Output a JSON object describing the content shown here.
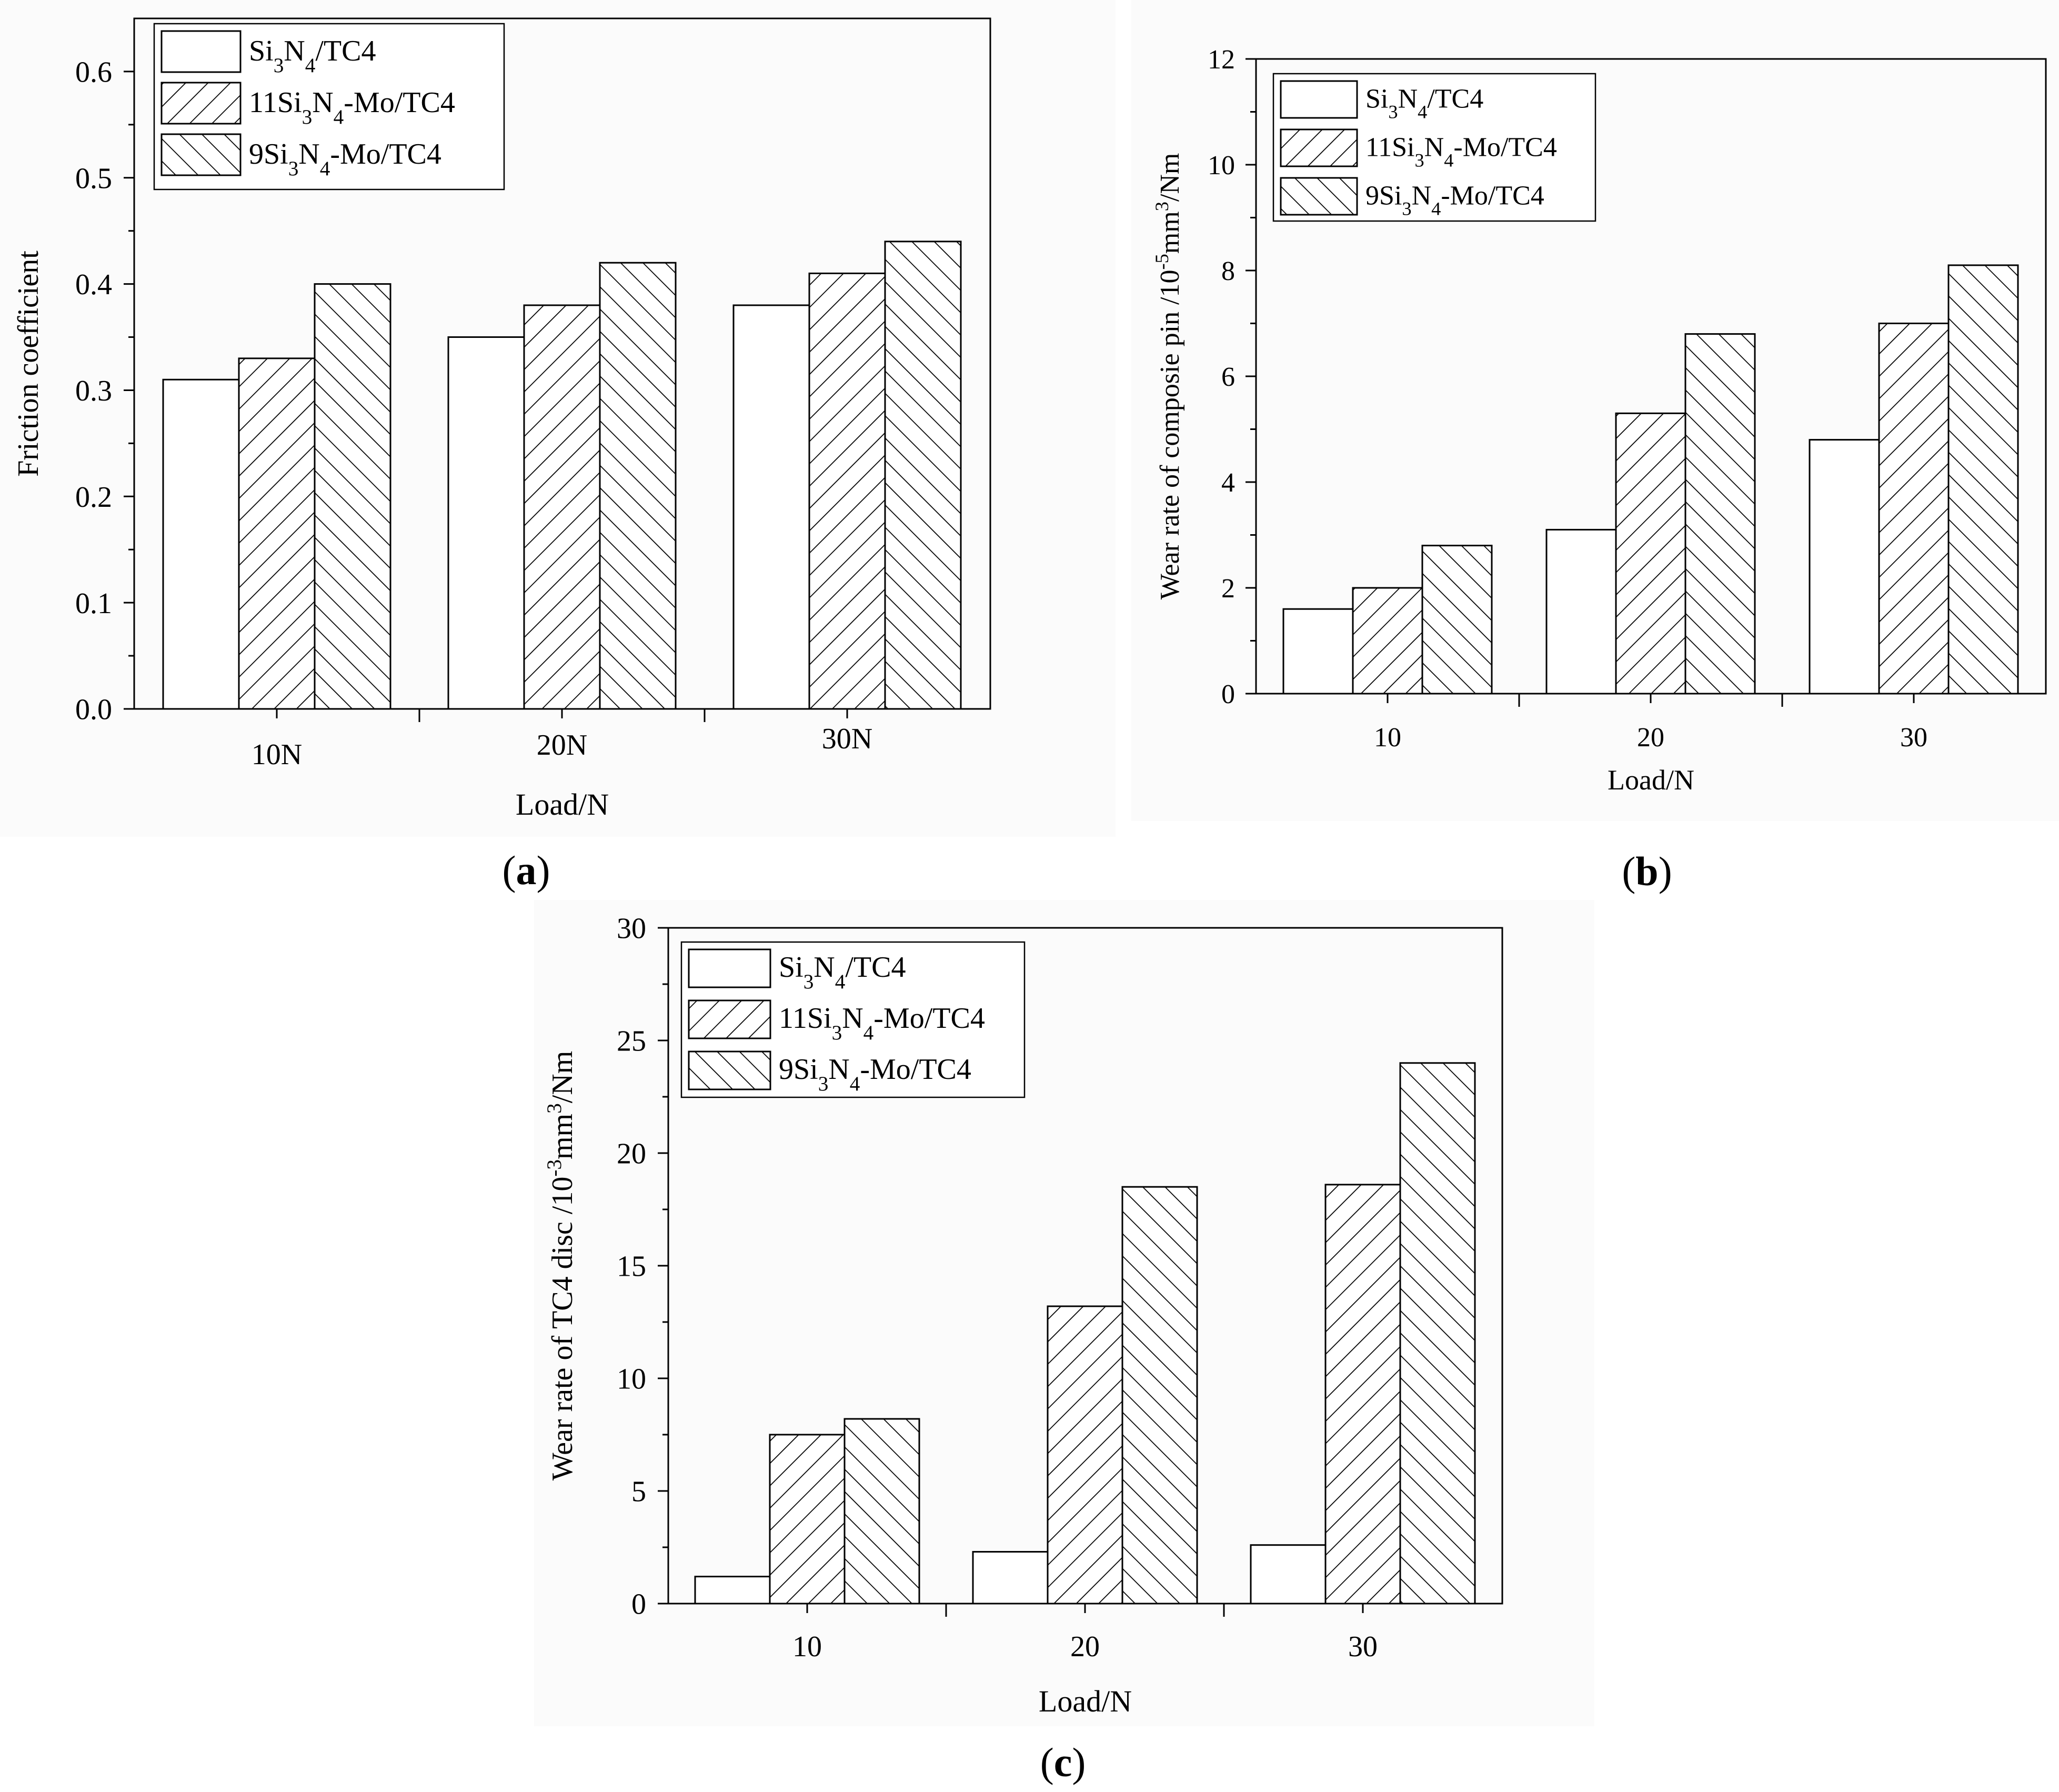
{
  "chart_data": [
    {
      "id": "a",
      "type": "bar",
      "panel_label": "a",
      "title": "",
      "xlabel": "Load/N",
      "ylabel": "Friction coefficient",
      "categories": [
        "10N",
        "20N",
        "30N"
      ],
      "ylim": [
        0,
        0.65
      ],
      "yticks": [
        "0.0",
        "0.1",
        "0.2",
        "0.3",
        "0.4",
        "0.5",
        "0.6"
      ],
      "ytick_values": [
        0,
        0.1,
        0.2,
        0.3,
        0.4,
        0.5,
        0.6
      ],
      "grid": false,
      "legend_position": "top-left",
      "series": [
        {
          "name": "Si3N4/TC4",
          "pattern": "none",
          "values": [
            0.31,
            0.35,
            0.38
          ]
        },
        {
          "name": "11Si3N4-Mo/TC4",
          "pattern": "forward",
          "values": [
            0.33,
            0.38,
            0.41
          ]
        },
        {
          "name": "9Si3N4-Mo/TC4",
          "pattern": "back",
          "values": [
            0.4,
            0.42,
            0.44
          ]
        }
      ]
    },
    {
      "id": "b",
      "type": "bar",
      "panel_label": "b",
      "title": "",
      "xlabel": "Load/N",
      "ylabel": "Wear rate of composie pin /10-5mm3/Nm",
      "categories": [
        "10",
        "20",
        "30"
      ],
      "ylim": [
        0,
        12
      ],
      "yticks": [
        "0",
        "2",
        "4",
        "6",
        "8",
        "10",
        "12"
      ],
      "ytick_values": [
        0,
        2,
        4,
        6,
        8,
        10,
        12
      ],
      "grid": false,
      "legend_position": "top-left",
      "series": [
        {
          "name": "Si3N4/TC4",
          "pattern": "none",
          "values": [
            1.6,
            3.1,
            4.8
          ]
        },
        {
          "name": "11Si3N4-Mo/TC4",
          "pattern": "forward",
          "values": [
            2.0,
            5.3,
            7.0
          ]
        },
        {
          "name": "9Si3N4-Mo/TC4",
          "pattern": "back",
          "values": [
            2.8,
            6.8,
            8.1
          ]
        }
      ]
    },
    {
      "id": "c",
      "type": "bar",
      "panel_label": "c",
      "title": "",
      "xlabel": "Load/N",
      "ylabel": "Wear rate of TC4 disc /10-3mm3/Nm",
      "categories": [
        "10",
        "20",
        "30"
      ],
      "ylim": [
        0,
        30
      ],
      "yticks": [
        "0",
        "5",
        "10",
        "15",
        "20",
        "25",
        "30"
      ],
      "ytick_values": [
        0,
        5,
        10,
        15,
        20,
        25,
        30
      ],
      "grid": false,
      "legend_position": "top-left",
      "series": [
        {
          "name": "Si3N4/TC4",
          "pattern": "none",
          "values": [
            1.2,
            2.3,
            2.6
          ]
        },
        {
          "name": "11Si3N4-Mo/TC4",
          "pattern": "forward",
          "values": [
            7.5,
            13.2,
            18.6
          ]
        },
        {
          "name": "9Si3N4-Mo/TC4",
          "pattern": "back",
          "values": [
            8.2,
            18.5,
            24.0
          ]
        }
      ]
    }
  ],
  "colors": {
    "bar_fill": "#ffffff",
    "stroke": "#000000",
    "background": "#ffffff",
    "panel_tint": "#fbfbfb"
  }
}
